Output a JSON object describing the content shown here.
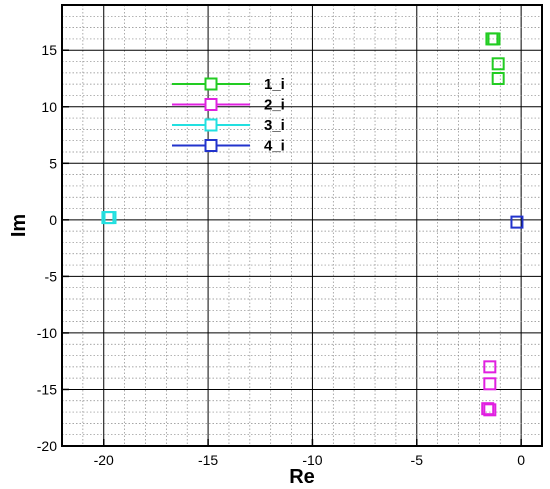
{
  "chart_data": {
    "type": "scatter",
    "title": "",
    "xlabel": "Re",
    "ylabel": "Im",
    "xlim": [
      -22,
      1
    ],
    "ylim": [
      -20,
      19
    ],
    "grid": true,
    "legend_position": "upper-left-inside",
    "x_ticks": [
      -20,
      -15,
      -10,
      -5,
      0
    ],
    "x_tick_labels": [
      "-20",
      "-15",
      "-10",
      "-5",
      "0"
    ],
    "y_ticks": [
      -20,
      -15,
      -10,
      -5,
      0,
      5,
      10,
      15
    ],
    "y_tick_labels": [
      "-20",
      "-15",
      "-10",
      "-5",
      "0",
      "5",
      "10",
      "15"
    ],
    "series": [
      {
        "name": "1_i",
        "color": "#22cc22",
        "marker": "square",
        "points": [
          {
            "x": -1.3,
            "y": 16.0
          },
          {
            "x": -1.4,
            "y": 16.0
          },
          {
            "x": -1.1,
            "y": 13.8
          },
          {
            "x": -1.1,
            "y": 12.5
          }
        ]
      },
      {
        "name": "2_i",
        "color": "#e020e0",
        "marker": "square",
        "points": [
          {
            "x": -1.5,
            "y": -13.0
          },
          {
            "x": -1.5,
            "y": -14.5
          },
          {
            "x": -1.6,
            "y": -16.7
          },
          {
            "x": -1.5,
            "y": -16.8
          }
        ]
      },
      {
        "name": "3_i",
        "color": "#22e0e0",
        "marker": "square",
        "points": [
          {
            "x": -19.8,
            "y": 0.2
          },
          {
            "x": -19.7,
            "y": 0.2
          }
        ]
      },
      {
        "name": "4_i",
        "color": "#2233cc",
        "marker": "square",
        "points": [
          {
            "x": -0.2,
            "y": -0.2
          }
        ]
      }
    ]
  }
}
